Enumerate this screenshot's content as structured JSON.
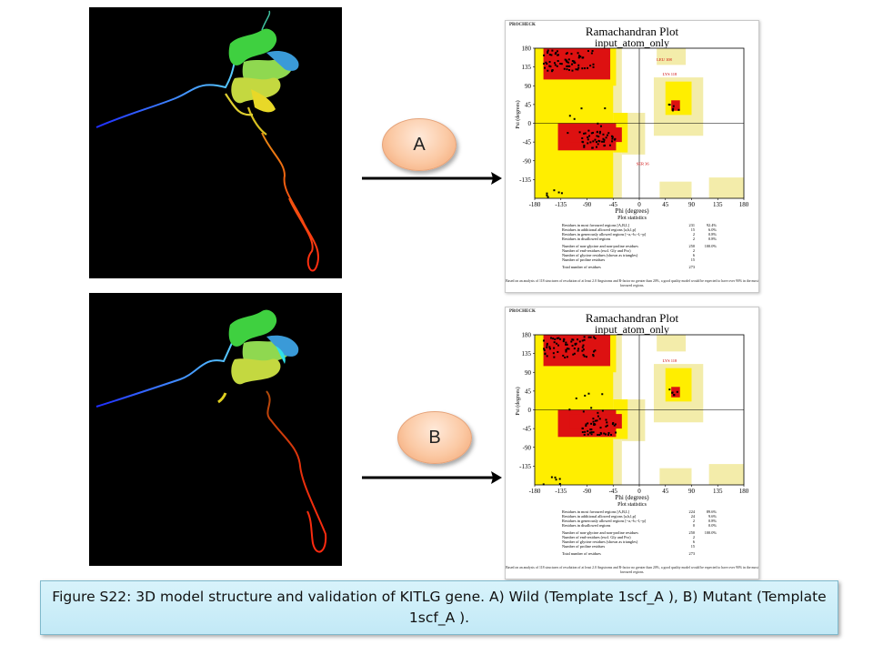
{
  "figure": {
    "caption": "Figure S22: 3D model structure and validation of KITLG gene. A) Wild (Template 1scf_A ), B) Mutant (Template 1scf_A )."
  },
  "labels": {
    "a": "A",
    "b": "B"
  },
  "colors": {
    "core_region": "#dd1111",
    "allowed_region": "#ffee00",
    "generous_region": "#f3ecaa",
    "disallowed_region": "#ffffff",
    "caption_bg": "#ccedf8",
    "oval_fill": "#fbc9a4"
  },
  "plots": [
    {
      "id": "wild",
      "header": "PROCHECK",
      "title": "Ramachandran Plot",
      "subtitle": "input_atom_only",
      "xlabel": "Phi (degrees)",
      "ylabel": "Psi (degrees)",
      "x_ticks": [
        "-180",
        "-135",
        "-90",
        "-45",
        "0",
        "45",
        "90",
        "135",
        "180"
      ],
      "y_ticks": [
        "180",
        "135",
        "90",
        "45",
        "0",
        "-45",
        "-90",
        "-135"
      ],
      "annotations": [
        "LEU 108",
        "LYS 118",
        "SER 36"
      ],
      "stats_title": "Plot statistics",
      "stats": [
        {
          "label": "Residues in most favoured regions [A,B,L]",
          "count": "231",
          "pct": "92.4%"
        },
        {
          "label": "Residues in additional allowed regions [a,b,l,p]",
          "count": "15",
          "pct": "6.0%"
        },
        {
          "label": "Residues in generously allowed regions [~a,~b,~l,~p]",
          "count": "2",
          "pct": "0.8%"
        },
        {
          "label": "Residues in disallowed regions",
          "count": "2",
          "pct": "0.8%"
        },
        {
          "label": "Number of non-glycine and non-proline residues",
          "count": "250",
          "pct": "100.0%"
        },
        {
          "label": "Number of end-residues (excl. Gly and Pro)",
          "count": "2",
          "pct": ""
        },
        {
          "label": "Number of glycine residues (shown as triangles)",
          "count": "6",
          "pct": ""
        },
        {
          "label": "Number of proline residues",
          "count": "15",
          "pct": ""
        },
        {
          "label": "Total number of residues",
          "count": "273",
          "pct": ""
        }
      ],
      "note": "Based on an analysis of 118 structures of resolution of at least 2.0 Angstroms and R-factor no greater than 20%, a good quality model would be expected to have over 90% in the most favoured regions."
    },
    {
      "id": "mutant",
      "header": "PROCHECK",
      "title": "Ramachandran Plot",
      "subtitle": "input_atom_only",
      "xlabel": "Phi (degrees)",
      "ylabel": "Psi (degrees)",
      "x_ticks": [
        "-180",
        "-135",
        "-90",
        "-45",
        "0",
        "45",
        "90",
        "135",
        "180"
      ],
      "y_ticks": [
        "180",
        "135",
        "90",
        "45",
        "0",
        "-45",
        "-90",
        "-135"
      ],
      "annotations": [
        "LYS 118"
      ],
      "stats_title": "Plot statistics",
      "stats": [
        {
          "label": "Residues in most favoured regions [A,B,L]",
          "count": "224",
          "pct": "89.6%"
        },
        {
          "label": "Residues in additional allowed regions [a,b,l,p]",
          "count": "24",
          "pct": "9.6%"
        },
        {
          "label": "Residues in generously allowed regions [~a,~b,~l,~p]",
          "count": "2",
          "pct": "0.8%"
        },
        {
          "label": "Residues in disallowed regions",
          "count": "0",
          "pct": "0.0%"
        },
        {
          "label": "Number of non-glycine and non-proline residues",
          "count": "250",
          "pct": "100.0%"
        },
        {
          "label": "Number of end-residues (excl. Gly and Pro)",
          "count": "2",
          "pct": ""
        },
        {
          "label": "Number of glycine residues (shown as triangles)",
          "count": "6",
          "pct": ""
        },
        {
          "label": "Number of proline residues",
          "count": "15",
          "pct": ""
        },
        {
          "label": "Total number of residues",
          "count": "273",
          "pct": ""
        }
      ],
      "note": "Based on an analysis of 118 structures of resolution of at least 2.0 Angstroms and R-factor no greater than 20%, a good quality model would be expected to have over 90% in the most favoured regions."
    }
  ]
}
